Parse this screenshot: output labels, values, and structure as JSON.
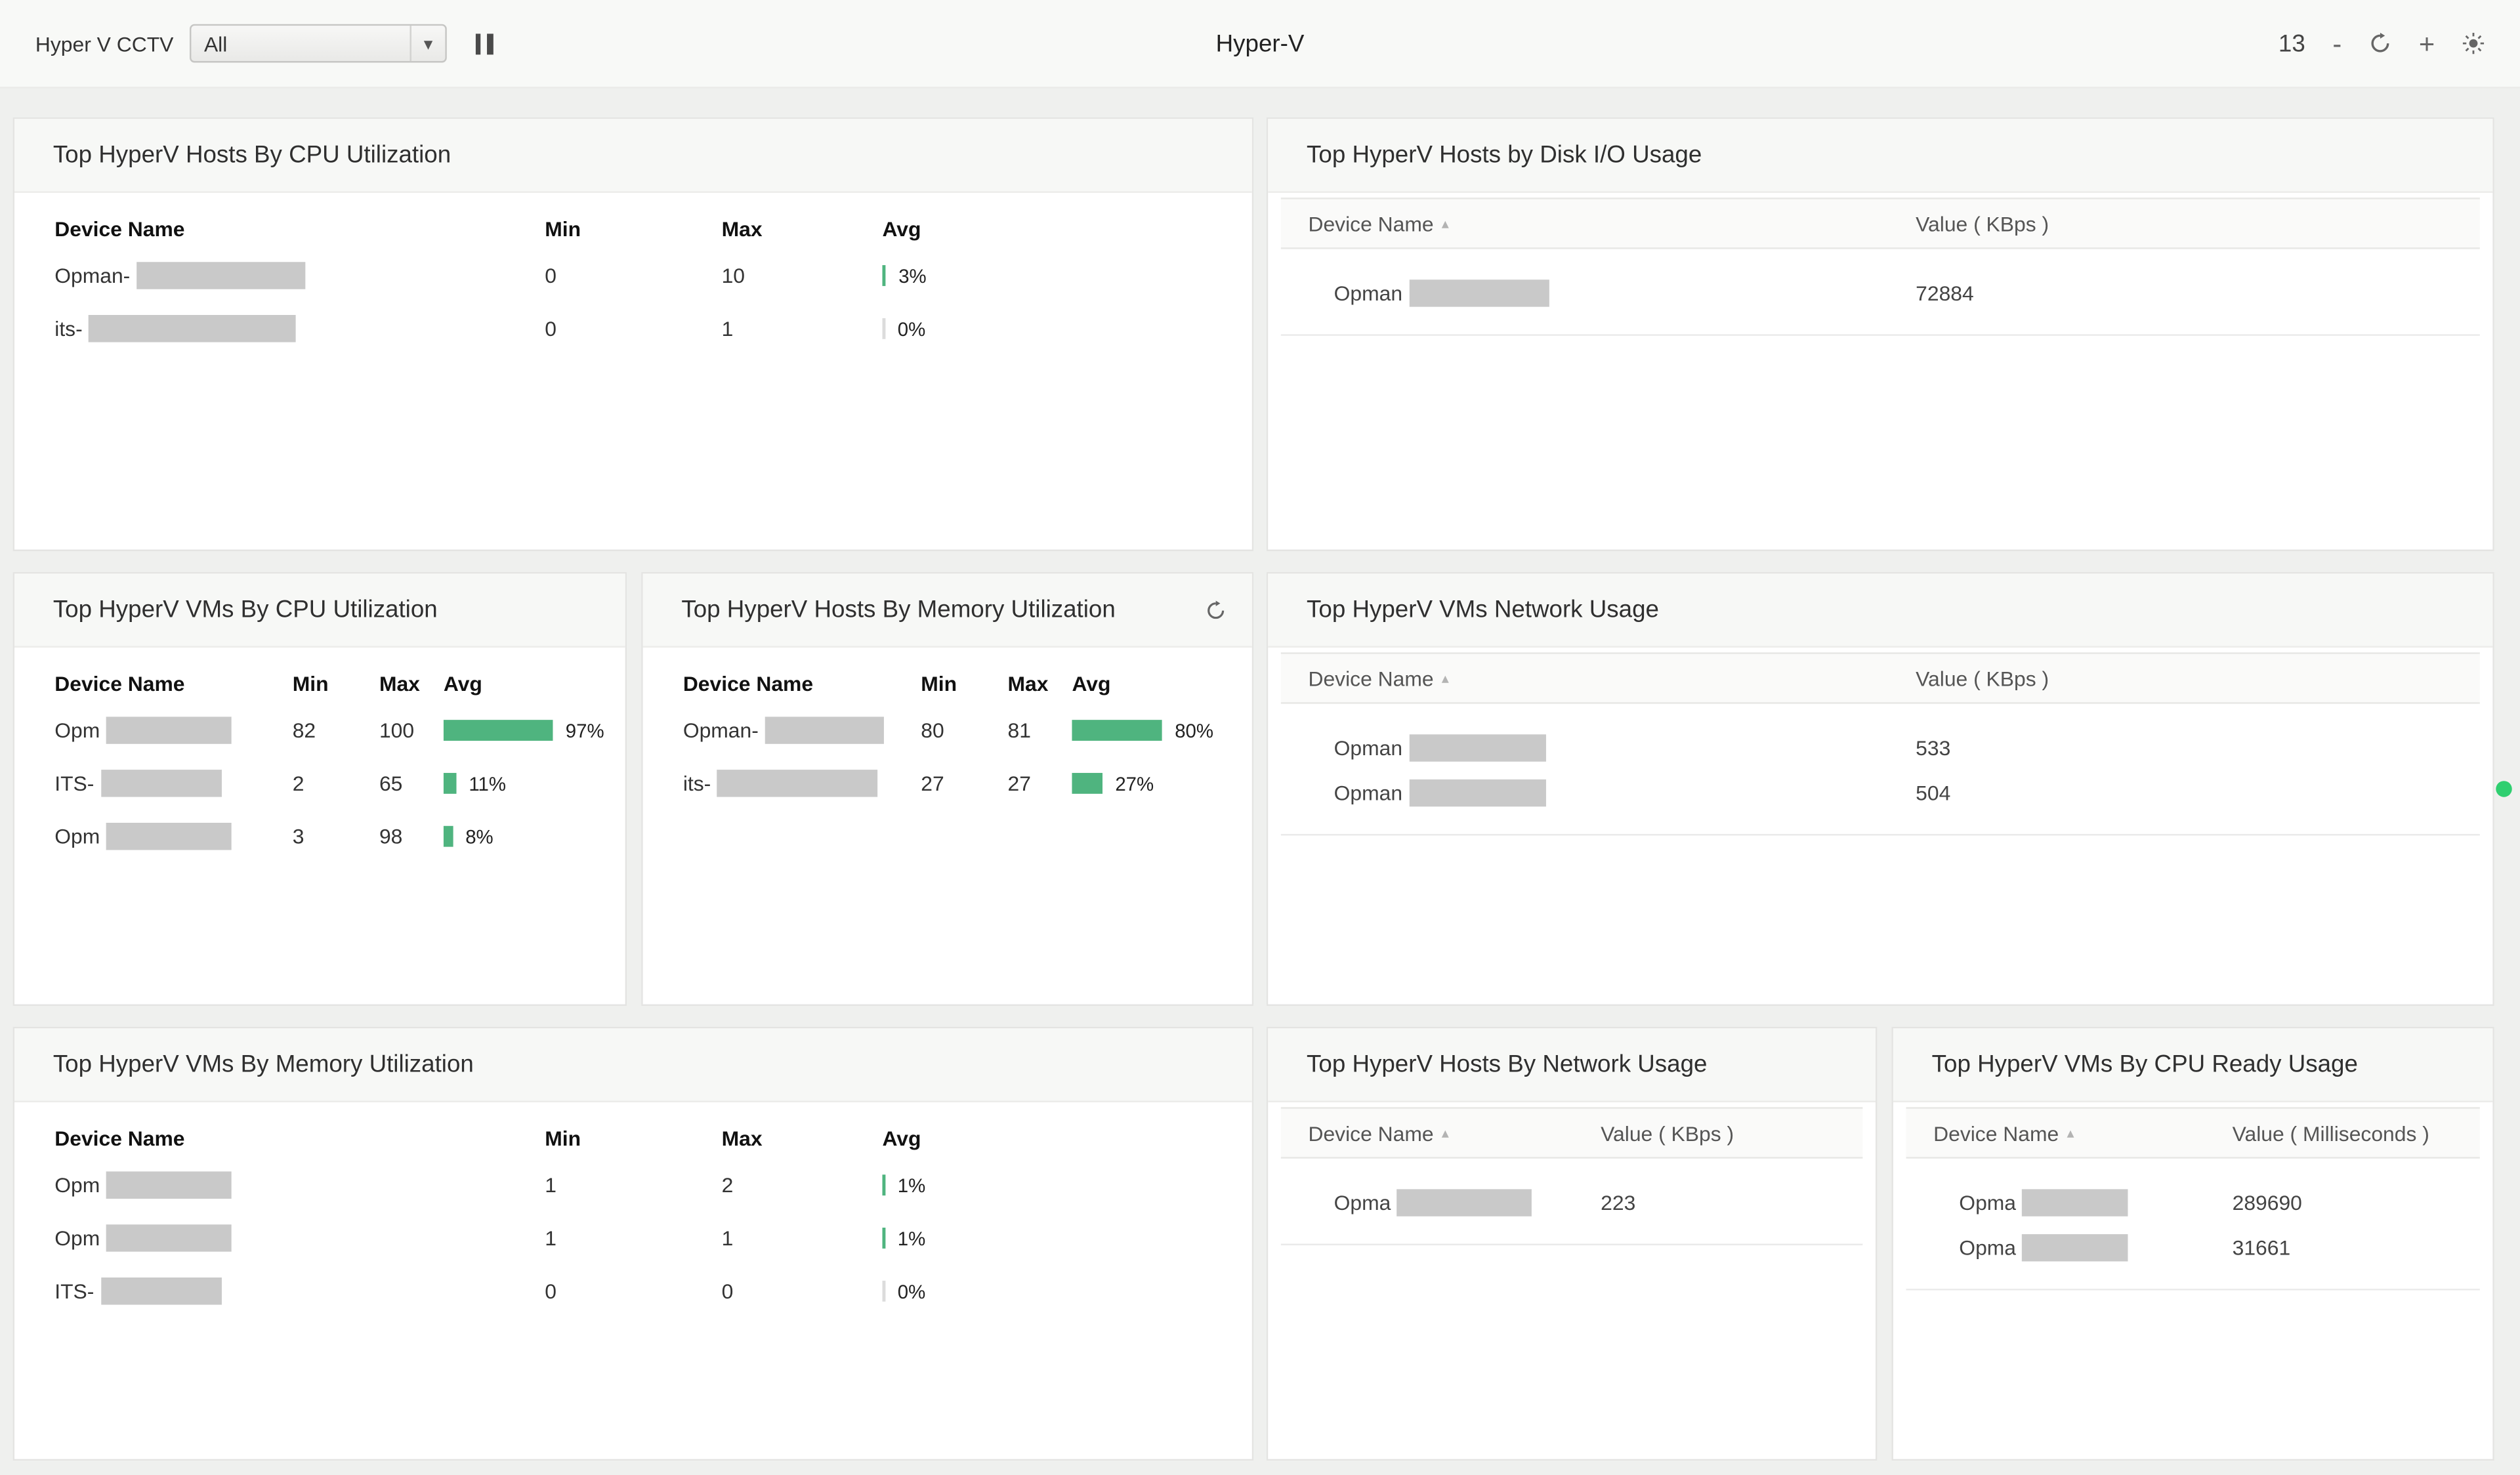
{
  "colors": {
    "accent-green": "#4fb47f",
    "redact": "#c9c9c9",
    "dot-green": "#2fcf70"
  },
  "icons": {
    "chevron_down": "▾",
    "sort_asc": "▴"
  },
  "topbar": {
    "dashboard_label": "Hyper V CCTV",
    "view_select_value": "All",
    "title": "Hyper-V",
    "count": "13",
    "minus": "-",
    "plus": "+"
  },
  "panels": {
    "hosts_cpu": {
      "title": "Top HyperV Hosts By CPU Utilization",
      "columns": {
        "device": "Device Name",
        "min": "Min",
        "max": "Max",
        "avg": "Avg"
      },
      "rows": [
        {
          "device_prefix": "Opman-",
          "min": "0",
          "max": "10",
          "avg_label": "3%",
          "avg_percent": 3
        },
        {
          "device_prefix": "its-",
          "min": "0",
          "max": "1",
          "avg_label": "0%",
          "avg_percent": 0
        }
      ]
    },
    "hosts_disk": {
      "title": "Top HyperV Hosts by Disk I/O Usage",
      "columns": {
        "device": "Device Name",
        "value": "Value ( KBps )"
      },
      "rows": [
        {
          "device_prefix": "Opman",
          "value": "72884"
        }
      ]
    },
    "vms_cpu": {
      "title": "Top HyperV VMs By CPU Utilization",
      "columns": {
        "device": "Device Name",
        "min": "Min",
        "max": "Max",
        "avg": "Avg"
      },
      "rows": [
        {
          "device_prefix": "Opm",
          "min": "82",
          "max": "100",
          "avg_label": "97%",
          "avg_percent": 97
        },
        {
          "device_prefix": "ITS-",
          "min": "2",
          "max": "65",
          "avg_label": "11%",
          "avg_percent": 11
        },
        {
          "device_prefix": "Opm",
          "min": "3",
          "max": "98",
          "avg_label": "8%",
          "avg_percent": 8
        }
      ]
    },
    "hosts_mem": {
      "title": "Top HyperV Hosts By Memory Utilization",
      "columns": {
        "device": "Device Name",
        "min": "Min",
        "max": "Max",
        "avg": "Avg"
      },
      "rows": [
        {
          "device_prefix": "Opman-",
          "min": "80",
          "max": "81",
          "avg_label": "80%",
          "avg_percent": 80
        },
        {
          "device_prefix": "its-",
          "min": "27",
          "max": "27",
          "avg_label": "27%",
          "avg_percent": 27
        }
      ]
    },
    "vms_net": {
      "title": "Top HyperV VMs Network Usage",
      "columns": {
        "device": "Device Name",
        "value": "Value ( KBps )"
      },
      "rows": [
        {
          "device_prefix": "Opman",
          "value": "533"
        },
        {
          "device_prefix": "Opman",
          "value": "504"
        }
      ]
    },
    "vms_mem": {
      "title": "Top HyperV VMs By Memory Utilization",
      "columns": {
        "device": "Device Name",
        "min": "Min",
        "max": "Max",
        "avg": "Avg"
      },
      "rows": [
        {
          "device_prefix": "Opm",
          "min": "1",
          "max": "2",
          "avg_label": "1%",
          "avg_percent": 1
        },
        {
          "device_prefix": "Opm",
          "min": "1",
          "max": "1",
          "avg_label": "1%",
          "avg_percent": 1
        },
        {
          "device_prefix": "ITS-",
          "min": "0",
          "max": "0",
          "avg_label": "0%",
          "avg_percent": 0
        }
      ]
    },
    "hosts_net": {
      "title": "Top HyperV Hosts By Network Usage",
      "columns": {
        "device": "Device Name",
        "value": "Value ( KBps )"
      },
      "rows": [
        {
          "device_prefix": "Opma",
          "value": "223"
        }
      ]
    },
    "vms_cpu_ready": {
      "title": "Top HyperV VMs By CPU Ready Usage",
      "columns": {
        "device": "Device Name",
        "value": "Value ( Milliseconds )"
      },
      "rows": [
        {
          "device_prefix": "Opma",
          "value": "289690"
        },
        {
          "device_prefix": "Opma",
          "value": "31661"
        }
      ]
    }
  }
}
